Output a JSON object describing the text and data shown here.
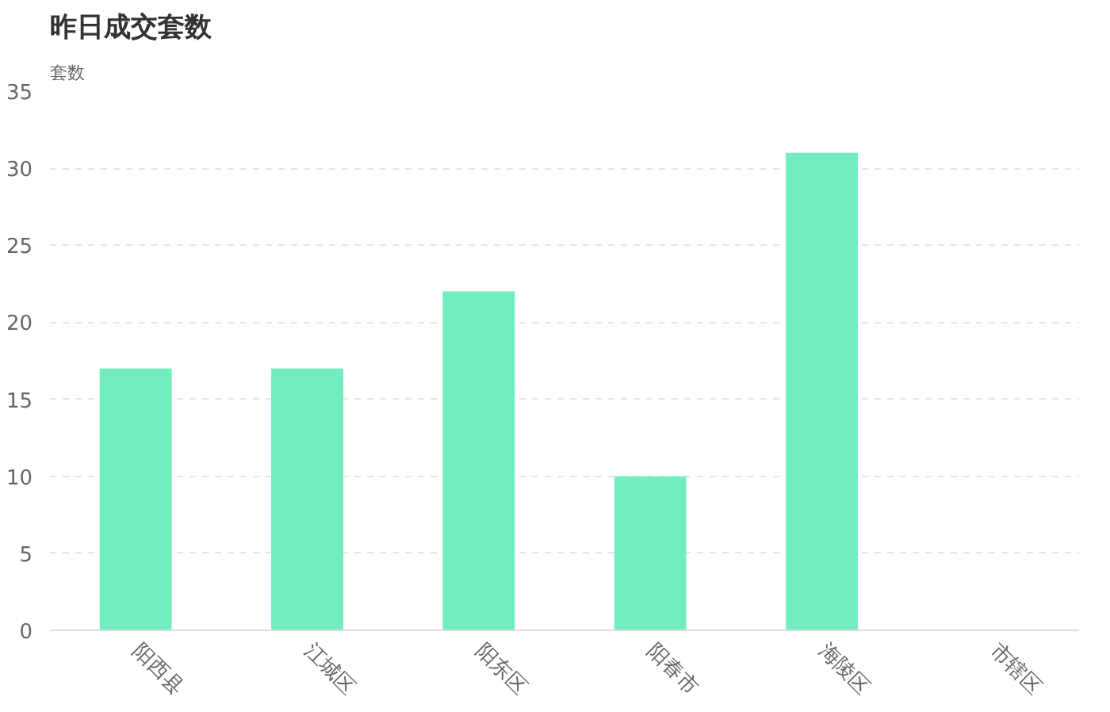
{
  "chart_data": {
    "type": "bar",
    "title": "昨日成交套数",
    "ylabel": "套数",
    "categories": [
      "阳西县",
      "江城区",
      "阳东区",
      "阳春市",
      "海陵区",
      "市辖区"
    ],
    "values": [
      17,
      17,
      22,
      10,
      31,
      0
    ],
    "color": "#72edbd",
    "ylim": [
      0,
      35
    ],
    "yticks": [
      0,
      5,
      10,
      15,
      20,
      25,
      30,
      35
    ],
    "grid": "y"
  }
}
